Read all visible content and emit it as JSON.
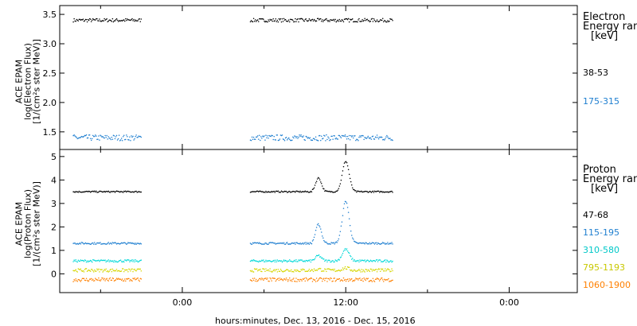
{
  "chart_data": [
    {
      "type": "scatter",
      "panel": "electron",
      "ylabel": [
        "ACE EPAM",
        "log(Electron Flux)",
        "[1/(cm²s ster MeV)]"
      ],
      "ylim": [
        1.2,
        3.65
      ],
      "yticks": [
        1.5,
        2.0,
        2.5,
        3.0,
        3.5
      ],
      "yticklabels": [
        "1.5",
        "2.0",
        "2.5",
        "3.0",
        "3.5"
      ],
      "legend_title": [
        "Electron",
        "Energy ran"
      ],
      "legend_unit": "[keV]",
      "segments": [
        [
          -8,
          -3
        ],
        [
          5,
          15.5
        ]
      ],
      "series": [
        {
          "name": "38-53",
          "color": "#000000",
          "level": 3.4,
          "noise": 0.03
        },
        {
          "name": "175-315",
          "color": "#1f7fd0",
          "level": 1.4,
          "noise": 0.05
        }
      ]
    },
    {
      "type": "scatter",
      "panel": "proton",
      "ylabel": [
        "ACE EPAM",
        "log(Proton Flux)",
        "[1/(cm²s ster MeV)]"
      ],
      "ylim": [
        -0.8,
        5.3
      ],
      "yticks": [
        0,
        1,
        2,
        3,
        4,
        5
      ],
      "yticklabels": [
        "0",
        "1",
        "2",
        "3",
        "4",
        "5"
      ],
      "legend_title": [
        "Proton",
        "Energy ran"
      ],
      "legend_unit": "[keV]",
      "segments": [
        [
          -8,
          -3
        ],
        [
          5,
          15.5
        ]
      ],
      "series": [
        {
          "name": "47-68",
          "color": "#000000",
          "level": 3.5,
          "noise": 0.03,
          "bump": 1.3
        },
        {
          "name": "115-195",
          "color": "#1f7fd0",
          "level": 1.3,
          "noise": 0.04,
          "bump": 1.8
        },
        {
          "name": "310-580",
          "color": "#00d8d8",
          "level": 0.55,
          "noise": 0.05,
          "bump": 0.5
        },
        {
          "name": "795-1193",
          "color": "#d6d600",
          "level": 0.15,
          "noise": 0.07,
          "bump": 0.1
        },
        {
          "name": "1060-1900",
          "color": "#ff8000",
          "level": -0.25,
          "noise": 0.08,
          "bump": 0
        }
      ]
    }
  ],
  "x_axis": {
    "label": "hours:minutes, Dec. 13, 2016 - Dec. 15, 2016",
    "xlim_hours": [
      -9,
      29
    ],
    "tick_hours": [
      0,
      12,
      24
    ],
    "tick_labels": [
      "0:00",
      "12:00",
      "0:00"
    ]
  }
}
